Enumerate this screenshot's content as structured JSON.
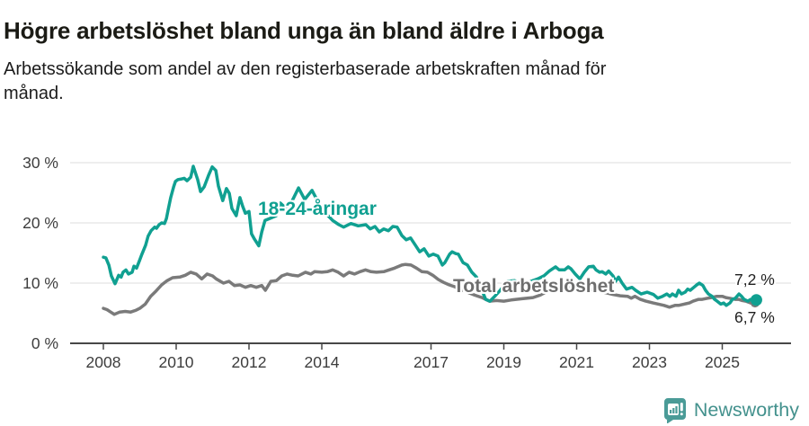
{
  "chart_data": {
    "type": "line",
    "title": "Högre arbetslöshet bland unga än bland äldre i Arboga",
    "subtitle": "Arbetssökande som andel av den registerbaserade arbetskraften månad för månad.",
    "subtitle_lines": [
      "Arbetssökande som andel av den registerbaserade arbetskraften månad för",
      "månad."
    ],
    "grid": "horizontal",
    "legend_position": "inline-labels-on-lines",
    "x_axis": {
      "ticks": [
        {
          "label": "2008",
          "year": 2008
        },
        {
          "label": "2010",
          "year": 2010
        },
        {
          "label": "2012",
          "year": 2012
        },
        {
          "label": "2014",
          "year": 2014
        },
        {
          "label": "2017",
          "year": 2017
        },
        {
          "label": "2019",
          "year": 2019
        },
        {
          "label": "2021",
          "year": 2021
        },
        {
          "label": "2023",
          "year": 2023
        },
        {
          "label": "2025",
          "year": 2025
        }
      ],
      "range_years": [
        2008,
        2026.1
      ]
    },
    "y_axis": {
      "unit": "%",
      "ticks": [
        {
          "label": "0 %",
          "value": 0
        },
        {
          "label": "10 %",
          "value": 10
        },
        {
          "label": "20 %",
          "value": 20
        },
        {
          "label": "30 %",
          "value": 30
        }
      ],
      "range": [
        0,
        32
      ]
    },
    "series": [
      {
        "name": "18-24-åringar",
        "color": "#10a091",
        "end_label": "7,2 %",
        "end_value": 7.2,
        "points": [
          [
            2008.0,
            14.3
          ],
          [
            2008.07,
            14.2
          ],
          [
            2008.15,
            13.0
          ],
          [
            2008.22,
            11.2
          ],
          [
            2008.32,
            9.9
          ],
          [
            2008.42,
            11.3
          ],
          [
            2008.49,
            11.0
          ],
          [
            2008.54,
            11.8
          ],
          [
            2008.62,
            12.2
          ],
          [
            2008.69,
            11.5
          ],
          [
            2008.79,
            11.8
          ],
          [
            2008.84,
            12.8
          ],
          [
            2008.91,
            12.5
          ],
          [
            2008.99,
            13.7
          ],
          [
            2009.06,
            14.8
          ],
          [
            2009.16,
            16.3
          ],
          [
            2009.23,
            17.8
          ],
          [
            2009.31,
            18.7
          ],
          [
            2009.41,
            19.3
          ],
          [
            2009.46,
            19.1
          ],
          [
            2009.53,
            19.7
          ],
          [
            2009.6,
            20.0
          ],
          [
            2009.68,
            19.9
          ],
          [
            2009.73,
            20.7
          ],
          [
            2009.78,
            22.2
          ],
          [
            2009.85,
            24.2
          ],
          [
            2009.93,
            26.0
          ],
          [
            2009.98,
            26.9
          ],
          [
            2010.05,
            27.2
          ],
          [
            2010.15,
            27.3
          ],
          [
            2010.22,
            27.4
          ],
          [
            2010.3,
            27.0
          ],
          [
            2010.4,
            27.6
          ],
          [
            2010.47,
            29.4
          ],
          [
            2010.59,
            27.2
          ],
          [
            2010.67,
            25.2
          ],
          [
            2010.77,
            26.0
          ],
          [
            2010.89,
            27.9
          ],
          [
            2010.99,
            29.3
          ],
          [
            2011.09,
            28.7
          ],
          [
            2011.16,
            26.1
          ],
          [
            2011.28,
            23.7
          ],
          [
            2011.38,
            25.7
          ],
          [
            2011.46,
            24.9
          ],
          [
            2011.53,
            22.4
          ],
          [
            2011.65,
            21.2
          ],
          [
            2011.75,
            24.2
          ],
          [
            2011.83,
            22.7
          ],
          [
            2011.9,
            21.6
          ],
          [
            2012.0,
            21.9
          ],
          [
            2012.07,
            18.2
          ],
          [
            2012.15,
            17.3
          ],
          [
            2012.27,
            16.2
          ],
          [
            2012.35,
            18.5
          ],
          [
            2012.44,
            20.4
          ],
          [
            2012.6,
            20.8
          ],
          [
            2012.75,
            21.2
          ],
          [
            2012.86,
            23.3
          ],
          [
            2013.0,
            22.5
          ],
          [
            2013.14,
            23.1
          ],
          [
            2013.36,
            25.8
          ],
          [
            2013.53,
            23.9
          ],
          [
            2013.73,
            25.4
          ],
          [
            2013.88,
            23.7
          ],
          [
            2014.0,
            22.4
          ],
          [
            2014.12,
            21.5
          ],
          [
            2014.3,
            20.4
          ],
          [
            2014.47,
            19.7
          ],
          [
            2014.6,
            19.3
          ],
          [
            2014.8,
            19.9
          ],
          [
            2015.0,
            19.5
          ],
          [
            2015.21,
            19.7
          ],
          [
            2015.33,
            19.0
          ],
          [
            2015.46,
            19.4
          ],
          [
            2015.58,
            18.5
          ],
          [
            2015.7,
            19.0
          ],
          [
            2015.83,
            18.7
          ],
          [
            2015.95,
            19.4
          ],
          [
            2016.07,
            19.3
          ],
          [
            2016.2,
            17.9
          ],
          [
            2016.32,
            17.2
          ],
          [
            2016.44,
            17.5
          ],
          [
            2016.57,
            16.3
          ],
          [
            2016.69,
            15.2
          ],
          [
            2016.81,
            15.7
          ],
          [
            2016.94,
            14.5
          ],
          [
            2017.06,
            14.8
          ],
          [
            2017.19,
            14.5
          ],
          [
            2017.31,
            13.0
          ],
          [
            2017.38,
            13.4
          ],
          [
            2017.51,
            14.8
          ],
          [
            2017.58,
            15.2
          ],
          [
            2017.68,
            14.9
          ],
          [
            2017.75,
            14.8
          ],
          [
            2017.88,
            13.4
          ],
          [
            2018.0,
            13.0
          ],
          [
            2018.12,
            11.8
          ],
          [
            2018.25,
            11.0
          ],
          [
            2018.35,
            9.5
          ],
          [
            2018.5,
            7.3
          ],
          [
            2018.62,
            7.0
          ],
          [
            2018.75,
            7.8
          ],
          [
            2018.9,
            8.8
          ],
          [
            2019.1,
            10.3
          ],
          [
            2019.3,
            10.4
          ],
          [
            2019.5,
            9.8
          ],
          [
            2019.7,
            10.2
          ],
          [
            2019.93,
            10.7
          ],
          [
            2020.1,
            11.2
          ],
          [
            2020.25,
            12.0
          ],
          [
            2020.42,
            12.7
          ],
          [
            2020.52,
            12.2
          ],
          [
            2020.67,
            12.2
          ],
          [
            2020.77,
            12.7
          ],
          [
            2020.84,
            12.4
          ],
          [
            2020.96,
            11.5
          ],
          [
            2021.09,
            10.7
          ],
          [
            2021.21,
            11.8
          ],
          [
            2021.33,
            12.7
          ],
          [
            2021.46,
            12.8
          ],
          [
            2021.53,
            12.2
          ],
          [
            2021.63,
            11.8
          ],
          [
            2021.7,
            11.9
          ],
          [
            2021.8,
            11.5
          ],
          [
            2021.88,
            12.0
          ],
          [
            2022.0,
            11.2
          ],
          [
            2022.07,
            10.3
          ],
          [
            2022.15,
            11.0
          ],
          [
            2022.25,
            10.0
          ],
          [
            2022.37,
            9.0
          ],
          [
            2022.52,
            9.3
          ],
          [
            2022.62,
            8.8
          ],
          [
            2022.77,
            8.2
          ],
          [
            2022.94,
            8.5
          ],
          [
            2023.11,
            8.1
          ],
          [
            2023.23,
            7.5
          ],
          [
            2023.36,
            7.8
          ],
          [
            2023.48,
            8.2
          ],
          [
            2023.56,
            7.8
          ],
          [
            2023.63,
            8.2
          ],
          [
            2023.73,
            7.8
          ],
          [
            2023.8,
            8.8
          ],
          [
            2023.88,
            8.2
          ],
          [
            2023.98,
            8.5
          ],
          [
            2024.05,
            9.0
          ],
          [
            2024.12,
            8.8
          ],
          [
            2024.22,
            9.3
          ],
          [
            2024.3,
            9.7
          ],
          [
            2024.37,
            10.0
          ],
          [
            2024.47,
            9.6
          ],
          [
            2024.54,
            8.8
          ],
          [
            2024.62,
            8.2
          ],
          [
            2024.72,
            7.8
          ],
          [
            2024.79,
            7.3
          ],
          [
            2024.86,
            7.0
          ],
          [
            2024.96,
            6.5
          ],
          [
            2025.04,
            6.7
          ],
          [
            2025.11,
            6.3
          ],
          [
            2025.21,
            6.7
          ],
          [
            2025.28,
            7.3
          ],
          [
            2025.36,
            7.5
          ],
          [
            2025.46,
            8.2
          ],
          [
            2025.53,
            7.8
          ],
          [
            2025.6,
            7.3
          ],
          [
            2025.7,
            7.0
          ],
          [
            2025.78,
            7.3
          ],
          [
            2025.9,
            7.2
          ]
        ]
      },
      {
        "name": "Total arbetslöshet",
        "color": "#7a7a7a",
        "end_label": "6,7 %",
        "end_value": 6.7,
        "points": [
          [
            2008.0,
            5.8
          ],
          [
            2008.1,
            5.6
          ],
          [
            2008.2,
            5.2
          ],
          [
            2008.3,
            4.8
          ],
          [
            2008.45,
            5.2
          ],
          [
            2008.6,
            5.3
          ],
          [
            2008.75,
            5.2
          ],
          [
            2008.9,
            5.5
          ],
          [
            2009.0,
            5.8
          ],
          [
            2009.15,
            6.5
          ],
          [
            2009.3,
            7.8
          ],
          [
            2009.45,
            8.7
          ],
          [
            2009.6,
            9.7
          ],
          [
            2009.75,
            10.4
          ],
          [
            2009.9,
            10.9
          ],
          [
            2010.1,
            11.0
          ],
          [
            2010.25,
            11.3
          ],
          [
            2010.4,
            11.8
          ],
          [
            2010.55,
            11.5
          ],
          [
            2010.7,
            10.7
          ],
          [
            2010.85,
            11.5
          ],
          [
            2011.0,
            11.2
          ],
          [
            2011.1,
            10.7
          ],
          [
            2011.3,
            10.0
          ],
          [
            2011.45,
            10.3
          ],
          [
            2011.6,
            9.6
          ],
          [
            2011.75,
            9.7
          ],
          [
            2011.9,
            9.3
          ],
          [
            2012.05,
            9.6
          ],
          [
            2012.2,
            9.3
          ],
          [
            2012.35,
            9.6
          ],
          [
            2012.45,
            8.8
          ],
          [
            2012.6,
            10.3
          ],
          [
            2012.75,
            10.4
          ],
          [
            2012.9,
            11.2
          ],
          [
            2013.05,
            11.5
          ],
          [
            2013.2,
            11.3
          ],
          [
            2013.35,
            11.2
          ],
          [
            2013.55,
            11.8
          ],
          [
            2013.7,
            11.5
          ],
          [
            2013.8,
            11.9
          ],
          [
            2014.0,
            11.8
          ],
          [
            2014.15,
            11.9
          ],
          [
            2014.3,
            12.2
          ],
          [
            2014.45,
            11.8
          ],
          [
            2014.6,
            11.2
          ],
          [
            2014.75,
            11.8
          ],
          [
            2014.9,
            11.5
          ],
          [
            2015.05,
            11.9
          ],
          [
            2015.2,
            12.2
          ],
          [
            2015.35,
            11.9
          ],
          [
            2015.5,
            11.8
          ],
          [
            2015.7,
            11.9
          ],
          [
            2015.85,
            12.2
          ],
          [
            2016.0,
            12.5
          ],
          [
            2016.2,
            13.0
          ],
          [
            2016.3,
            13.1
          ],
          [
            2016.45,
            13.0
          ],
          [
            2016.6,
            12.5
          ],
          [
            2016.75,
            11.9
          ],
          [
            2016.9,
            11.8
          ],
          [
            2017.05,
            11.3
          ],
          [
            2017.2,
            10.6
          ],
          [
            2017.35,
            10.1
          ],
          [
            2017.5,
            9.7
          ],
          [
            2017.65,
            9.4
          ],
          [
            2017.8,
            9.0
          ],
          [
            2018.0,
            8.5
          ],
          [
            2018.2,
            8.0
          ],
          [
            2018.4,
            7.6
          ],
          [
            2018.6,
            7.0
          ],
          [
            2018.8,
            7.1
          ],
          [
            2019.0,
            7.0
          ],
          [
            2019.2,
            7.2
          ],
          [
            2019.5,
            7.4
          ],
          [
            2019.8,
            7.6
          ],
          [
            2020.0,
            8.0
          ],
          [
            2020.3,
            9.0
          ],
          [
            2020.6,
            9.5
          ],
          [
            2020.9,
            9.4
          ],
          [
            2021.2,
            9.2
          ],
          [
            2021.5,
            8.8
          ],
          [
            2021.8,
            8.4
          ],
          [
            2022.0,
            8.1
          ],
          [
            2022.2,
            7.9
          ],
          [
            2022.4,
            7.8
          ],
          [
            2022.5,
            7.5
          ],
          [
            2022.6,
            7.8
          ],
          [
            2022.75,
            7.3
          ],
          [
            2022.9,
            7.0
          ],
          [
            2023.1,
            6.7
          ],
          [
            2023.25,
            6.5
          ],
          [
            2023.4,
            6.3
          ],
          [
            2023.55,
            6.0
          ],
          [
            2023.7,
            6.3
          ],
          [
            2023.8,
            6.3
          ],
          [
            2023.95,
            6.5
          ],
          [
            2024.1,
            6.7
          ],
          [
            2024.2,
            7.0
          ],
          [
            2024.35,
            7.3
          ],
          [
            2024.45,
            7.3
          ],
          [
            2024.6,
            7.5
          ],
          [
            2024.7,
            7.6
          ],
          [
            2024.85,
            7.8
          ],
          [
            2025.0,
            7.8
          ],
          [
            2025.1,
            7.6
          ],
          [
            2025.2,
            7.5
          ],
          [
            2025.35,
            7.3
          ],
          [
            2025.45,
            7.3
          ],
          [
            2025.55,
            7.1
          ],
          [
            2025.65,
            7.0
          ],
          [
            2025.78,
            6.7
          ],
          [
            2025.9,
            6.7
          ]
        ]
      }
    ],
    "colors": {
      "grid": "#dcdcdc",
      "axis": "#474747",
      "tick_text": "#3d3d3d",
      "youth_line": "#10a091",
      "total_line": "#7a7a7a",
      "total_label": "#6e6e6e"
    }
  },
  "footer": {
    "brand": "Newsworthy",
    "brand_color": "#43918d",
    "icon_color": "#4a9b97"
  }
}
